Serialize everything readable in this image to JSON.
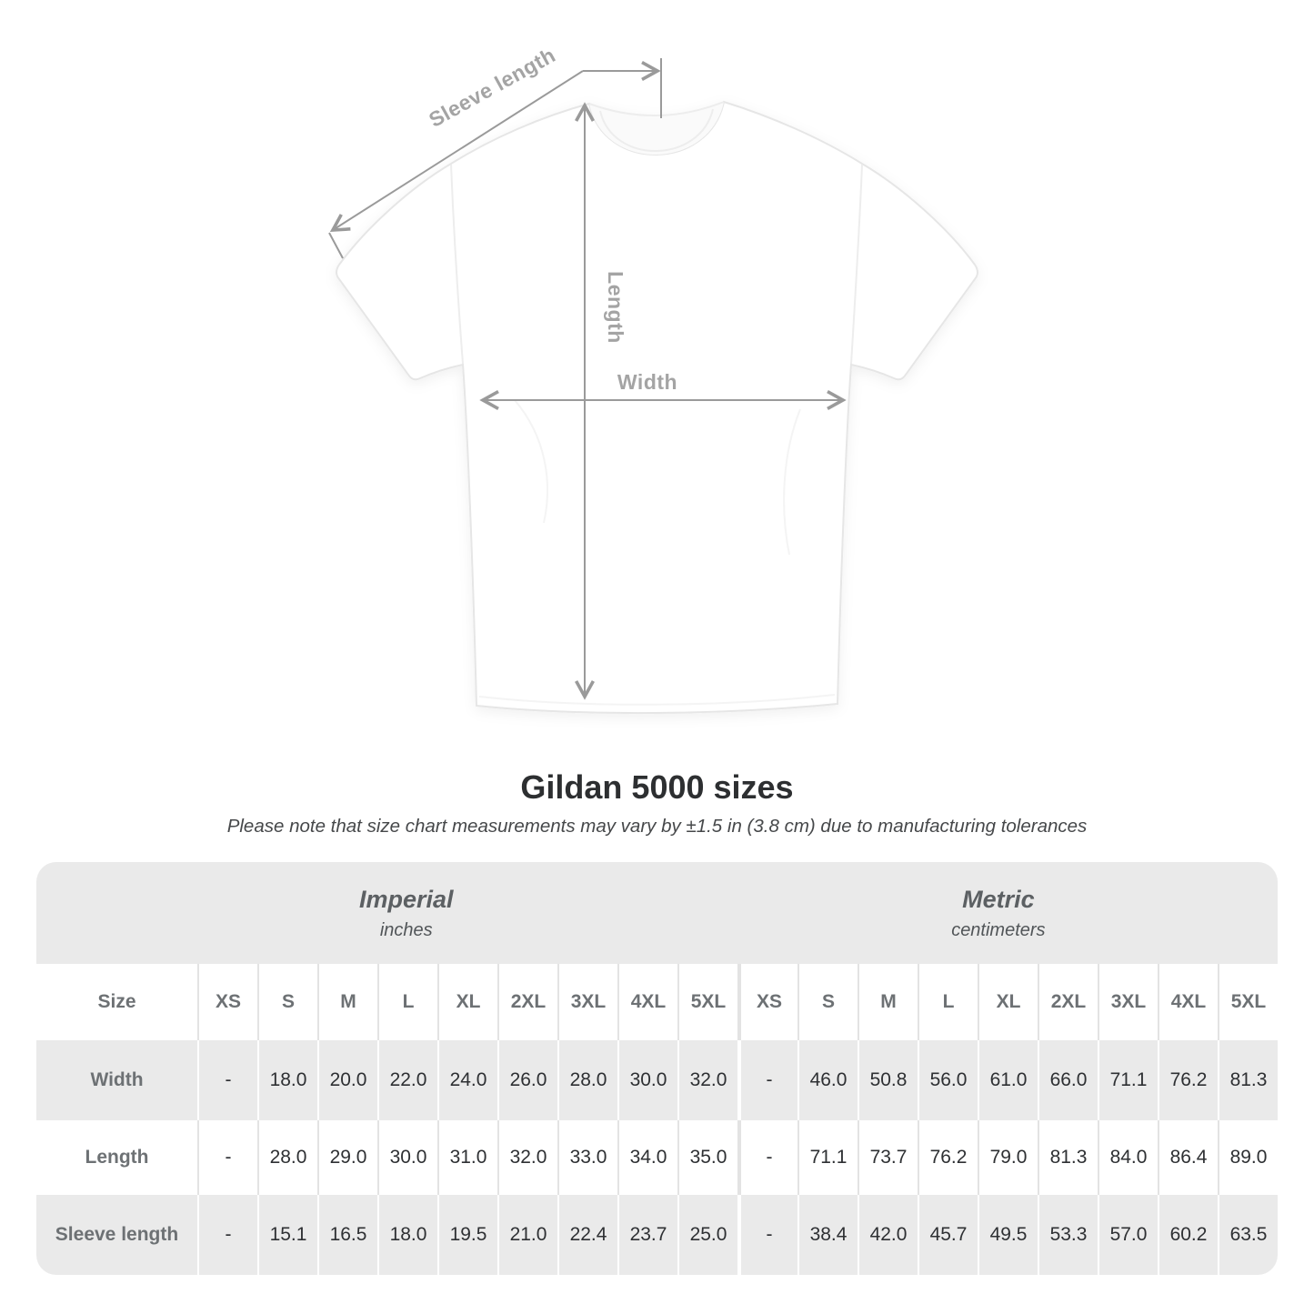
{
  "colors": {
    "annotation": "#9a9a9a",
    "diagram_label": "#a4a4a4",
    "band": "#eaeaea",
    "header_text": "#6d7174",
    "value_text": "#2e3033",
    "unit_text": "#5c6063",
    "title": "#2d2f31",
    "subtitle": "#46484a",
    "separator_on_white": "#e3e3e3",
    "separator_on_gray": "#ffffff",
    "tshirt_outline": "#e6e6e6"
  },
  "diagram": {
    "labels": {
      "sleeve": "Sleeve length",
      "length": "Length",
      "width": "Width"
    }
  },
  "heading": {
    "title": "Gildan 5000 sizes",
    "subtitle": "Please note that size chart measurements may vary by ±1.5 in (3.8 cm) due to manufacturing tolerances"
  },
  "table": {
    "unit_groups": [
      {
        "name": "Imperial",
        "unit": "inches"
      },
      {
        "name": "Metric",
        "unit": "centimeters"
      }
    ],
    "size_header": "Size",
    "sizes": [
      "XS",
      "S",
      "M",
      "L",
      "XL",
      "2XL",
      "3XL",
      "4XL",
      "5XL"
    ],
    "rows": [
      {
        "label": "Width",
        "imperial": [
          "-",
          "18.0",
          "20.0",
          "22.0",
          "24.0",
          "26.0",
          "28.0",
          "30.0",
          "32.0"
        ],
        "metric": [
          "-",
          "46.0",
          "50.8",
          "56.0",
          "61.0",
          "66.0",
          "71.1",
          "76.2",
          "81.3"
        ]
      },
      {
        "label": "Length",
        "imperial": [
          "-",
          "28.0",
          "29.0",
          "30.0",
          "31.0",
          "32.0",
          "33.0",
          "34.0",
          "35.0"
        ],
        "metric": [
          "-",
          "71.1",
          "73.7",
          "76.2",
          "79.0",
          "81.3",
          "84.0",
          "86.4",
          "89.0"
        ]
      },
      {
        "label": "Sleeve length",
        "imperial": [
          "-",
          "15.1",
          "16.5",
          "18.0",
          "19.5",
          "21.0",
          "22.4",
          "23.7",
          "25.0"
        ],
        "metric": [
          "-",
          "38.4",
          "42.0",
          "45.7",
          "49.5",
          "53.3",
          "57.0",
          "60.2",
          "63.5"
        ]
      }
    ]
  }
}
